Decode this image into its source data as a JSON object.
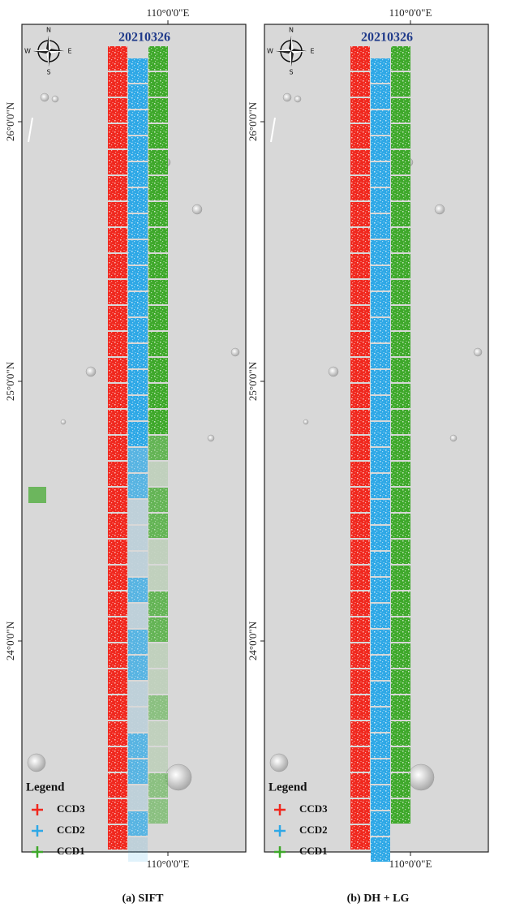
{
  "panels": [
    {
      "title": "20210326",
      "top_label": "110°0'0\"E",
      "bottom_label": "110°0'0\"E",
      "lat_labels": [
        "26°0'0\"N",
        "25°0'0\"N",
        "24°0'0\"N"
      ],
      "compass": {
        "n": "N",
        "s": "S",
        "e": "E",
        "w": "W"
      },
      "legend": {
        "title": "Legend",
        "items": [
          {
            "name": "CCD3",
            "color": "#f0281e"
          },
          {
            "name": "CCD2",
            "color": "#2ea8e6"
          },
          {
            "name": "CCD1",
            "color": "#3ea82a"
          }
        ]
      },
      "caption": "(a) SIFT"
    },
    {
      "title": "20210326",
      "top_label": "110°0'0\"E",
      "bottom_label": "110°0'0\"E",
      "lat_labels": [
        "26°0'0\"N",
        "25°0'0\"N",
        "24°0'0\"N"
      ],
      "compass": {
        "n": "N",
        "s": "S",
        "e": "E",
        "w": "W"
      },
      "legend": {
        "title": "Legend",
        "items": [
          {
            "name": "CCD3",
            "color": "#f0281e"
          },
          {
            "name": "CCD2",
            "color": "#2ea8e6"
          },
          {
            "name": "CCD1",
            "color": "#3ea82a"
          }
        ]
      },
      "caption": "(b) DH + LG"
    }
  ]
}
